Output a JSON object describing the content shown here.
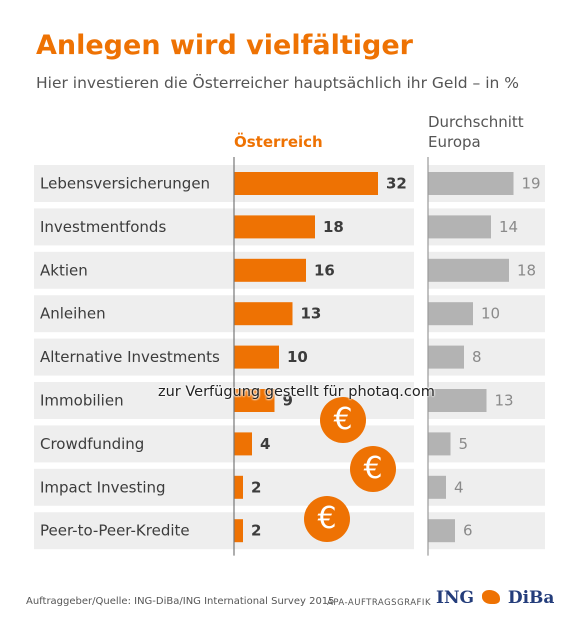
{
  "title": "Anlegen wird vielfältiger",
  "subtitle": "Hier investieren die Österreicher hauptsächlich ihr Geld – in %",
  "colors": {
    "accent": "#ee7203",
    "europe": "#b3b3b3",
    "row_bg": "#eeeeee"
  },
  "chart_data": {
    "type": "bar",
    "categories": [
      "Lebensversicherungen",
      "Investmentfonds",
      "Aktien",
      "Anleihen",
      "Alternative Investments",
      "Immobilien",
      "Crowdfunding",
      "Impact Investing",
      "Peer-to-Peer-Kredite"
    ],
    "series": [
      {
        "name": "Österreich",
        "values": [
          32,
          18,
          16,
          13,
          10,
          9,
          4,
          2,
          2
        ]
      },
      {
        "name": "Durchschnitt Europa",
        "values": [
          19,
          14,
          18,
          10,
          8,
          13,
          5,
          4,
          6
        ]
      }
    ],
    "series_headers": [
      "Österreich",
      "Durchschnitt",
      "Europa"
    ]
  },
  "watermark": "zur Verfügung gestellt für photaq.com",
  "coin_symbol": "€",
  "footer": {
    "source": "Auftraggeber/Quelle: ING-DiBa/ING International Survey 2015",
    "agency": "APA-AUFTRAGSGRAFIK",
    "logo_ing": "ING",
    "logo_diba": "DiBa"
  }
}
